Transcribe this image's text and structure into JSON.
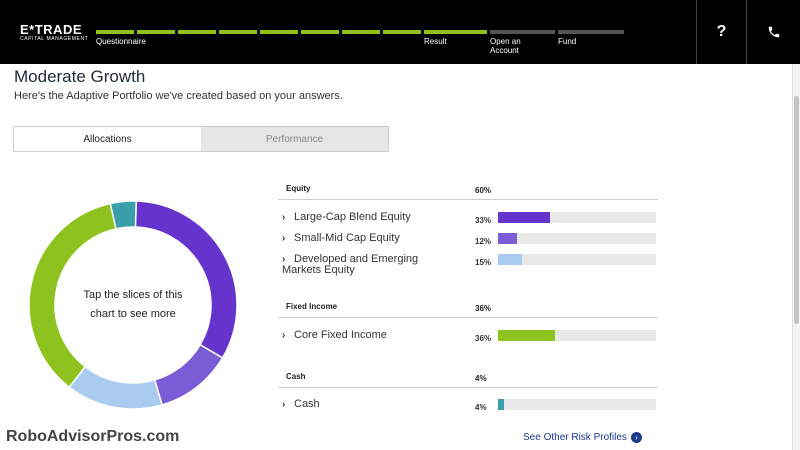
{
  "header": {
    "logo_brand": "E*TRADE",
    "logo_sub": "CAPITAL MANAGEMENT",
    "steps": [
      {
        "label": "Questionnaire",
        "status": "complete"
      },
      {
        "label": "Result",
        "status": "complete"
      },
      {
        "label": "Open an Account",
        "status": "pending"
      },
      {
        "label": "Fund",
        "status": "pending"
      }
    ],
    "help_glyph": "?",
    "help_icon": "question-mark-icon",
    "phone_icon": "phone-icon",
    "progress_color": "#8dc21f",
    "pending_color": "#555555"
  },
  "page": {
    "title": "Moderate Growth",
    "subtitle": "Here's the Adaptive Portfolio we've created based on your answers."
  },
  "tabs": [
    {
      "label": "Allocations",
      "active": true
    },
    {
      "label": "Performance",
      "active": false
    }
  ],
  "donut": {
    "center_line1": "Tap the slices of this",
    "center_line2": "chart to see more",
    "slices": [
      {
        "name": "Large-Cap Blend Equity",
        "percent": 33,
        "color": "#6633cc"
      },
      {
        "name": "Small-Mid Cap Equity",
        "percent": 12,
        "color": "#7b5bd6"
      },
      {
        "name": "Developed and Emerging Markets Equity",
        "percent": 15,
        "color": "#a9cbef"
      },
      {
        "name": "Core Fixed Income",
        "percent": 36,
        "color": "#8dc21f"
      },
      {
        "name": "Cash",
        "percent": 4,
        "color": "#3a9fa8"
      }
    ]
  },
  "allocations": {
    "sections": [
      {
        "name": "Equity",
        "percent": "60%",
        "items": [
          {
            "name_line1": "Large-Cap Blend Equity",
            "name_line2": "",
            "percent": "33%",
            "value": 33,
            "color": "#6633cc"
          },
          {
            "name_line1": "Small-Mid Cap Equity",
            "name_line2": "",
            "percent": "12%",
            "value": 12,
            "color": "#7b5bd6"
          },
          {
            "name_line1": "Developed and Emerging",
            "name_line2": "Markets Equity",
            "percent": "15%",
            "value": 15,
            "color": "#a9cbef"
          }
        ]
      },
      {
        "name": "Fixed Income",
        "percent": "36%",
        "items": [
          {
            "name_line1": "Core Fixed Income",
            "name_line2": "",
            "percent": "36%",
            "value": 36,
            "color": "#8dc21f"
          }
        ]
      },
      {
        "name": "Cash",
        "percent": "4%",
        "items": [
          {
            "name_line1": "Cash",
            "name_line2": "",
            "percent": "4%",
            "value": 4,
            "color": "#3a9fa8"
          }
        ]
      }
    ]
  },
  "footer": {
    "watermark": "RoboAdvisorPros.com",
    "see_other": "See Other Risk Profiles",
    "arrow_icon": "chevron-right-circle-icon"
  }
}
